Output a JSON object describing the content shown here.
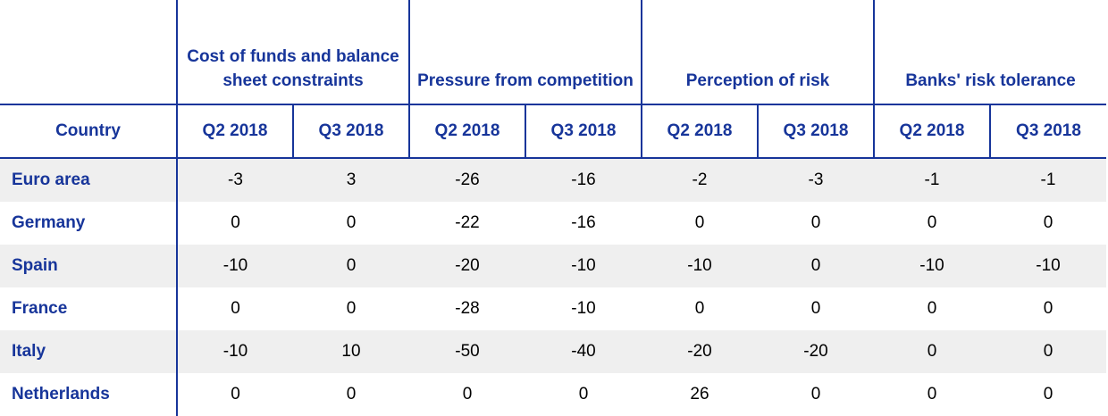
{
  "table": {
    "groups": [
      "Cost of funds and balance sheet constraints",
      "Pressure from competition",
      "Perception of risk",
      "Banks' risk tolerance"
    ],
    "country_header": "Country",
    "period_headers": [
      "Q2 2018",
      "Q3 2018",
      "Q2 2018",
      "Q3 2018",
      "Q2 2018",
      "Q3 2018",
      "Q2 2018",
      "Q3 2018"
    ],
    "rows": [
      {
        "country": "Euro area",
        "values": [
          "-3",
          "3",
          "-26",
          "-16",
          "-2",
          "-3",
          "-1",
          "-1"
        ]
      },
      {
        "country": "Germany",
        "values": [
          "0",
          "0",
          "-22",
          "-16",
          "0",
          "0",
          "0",
          "0"
        ]
      },
      {
        "country": "Spain",
        "values": [
          "-10",
          "0",
          "-20",
          "-10",
          "-10",
          "0",
          "-10",
          "-10"
        ]
      },
      {
        "country": "France",
        "values": [
          "0",
          "0",
          "-28",
          "-10",
          "0",
          "0",
          "0",
          "0"
        ]
      },
      {
        "country": "Italy",
        "values": [
          "-10",
          "10",
          "-50",
          "-40",
          "-20",
          "-20",
          "0",
          "0"
        ]
      },
      {
        "country": "Netherlands",
        "values": [
          "0",
          "0",
          "0",
          "0",
          "26",
          "0",
          "0",
          "0"
        ]
      }
    ]
  },
  "colors": {
    "header_text": "#17359a",
    "rule": "#17359a",
    "shaded_row": "#efefef"
  }
}
